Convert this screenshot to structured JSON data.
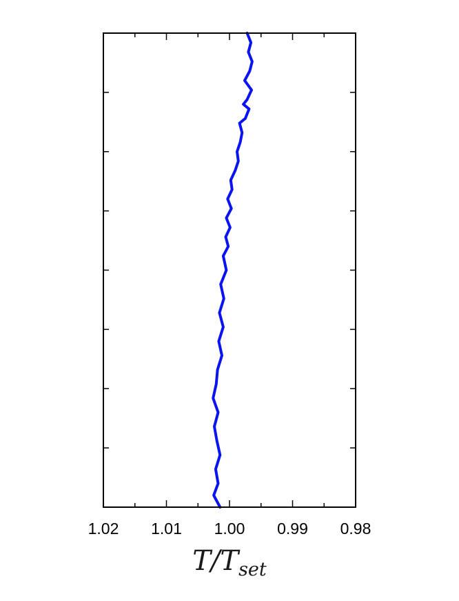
{
  "chart_data": {
    "type": "line",
    "orientation": "vertical-profile",
    "xlabel": "T/T",
    "xlabel_subscript": "set",
    "x_axis_reversed": true,
    "xlim": [
      1.02,
      0.98
    ],
    "x_ticks": [
      1.02,
      1.01,
      1.0,
      0.99,
      0.98
    ],
    "x_tick_labels": [
      "1.02",
      "1.01",
      "1.00",
      "0.99",
      "0.98"
    ],
    "ylabel": "",
    "y_tick_labels": [],
    "y_minor_ticks": 7,
    "ylim": [
      0,
      1
    ],
    "grid": false,
    "series": [
      {
        "color": "#0a14f0",
        "x": [
          1.0015,
          1.0025,
          1.0018,
          1.0022,
          1.0015,
          1.002,
          1.0024,
          1.0018,
          1.0026,
          1.0021,
          1.0019,
          1.0012,
          1.0017,
          1.001,
          1.0016,
          1.0009,
          1.0014,
          1.0005,
          1.001,
          1.0002,
          1.0006,
          0.9999,
          1.0005,
          0.9997,
          1.0003,
          0.9996,
          0.9998,
          0.9991,
          0.9986,
          0.9988,
          0.9983,
          0.998,
          0.9984,
          0.9975,
          0.9969,
          0.9978,
          0.9972,
          0.9965,
          0.9976,
          0.9968,
          0.9964,
          0.997,
          0.9966,
          0.9972
        ],
        "y": [
          0.0,
          0.025,
          0.05,
          0.08,
          0.11,
          0.14,
          0.17,
          0.2,
          0.23,
          0.26,
          0.29,
          0.32,
          0.35,
          0.38,
          0.41,
          0.44,
          0.47,
          0.5,
          0.53,
          0.55,
          0.57,
          0.59,
          0.61,
          0.63,
          0.65,
          0.67,
          0.69,
          0.71,
          0.73,
          0.75,
          0.77,
          0.79,
          0.81,
          0.82,
          0.84,
          0.85,
          0.86,
          0.88,
          0.9,
          0.92,
          0.94,
          0.96,
          0.98,
          1.0
        ]
      }
    ]
  }
}
